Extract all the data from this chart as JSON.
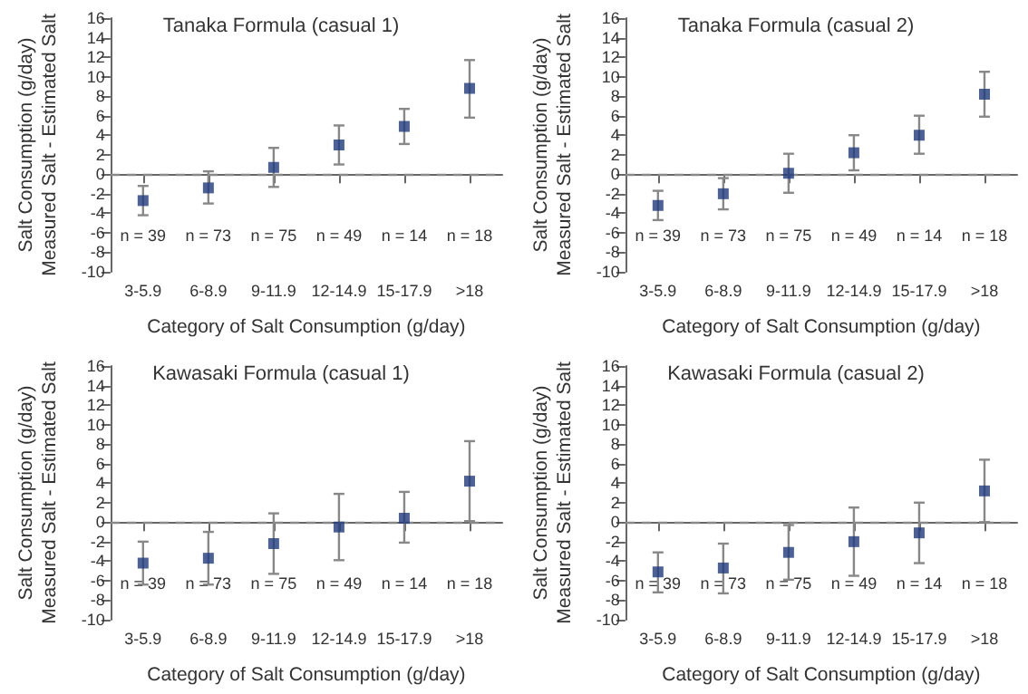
{
  "chart_data": [
    {
      "type": "scatter",
      "title": "Tanaka Formula (casual 1)",
      "xlabel": "Category of Salt Consumption (g/day)",
      "ylabel": "Salt Consumption (g/day)\nMeasured Salt - Estimated Salt",
      "categories": [
        "3-5.9",
        "6-8.9",
        "9-11.9",
        "12-14.9",
        "15-17.9",
        ">18"
      ],
      "series": [
        {
          "color": "#1f3a7a",
          "values": [
            -2.7,
            -1.4,
            0.7,
            3,
            4.9,
            8.8
          ],
          "errors": [
            [
              -4.2,
              -1.2
            ],
            [
              -3,
              0.3
            ],
            [
              -1.3,
              2.7
            ],
            [
              1,
              5
            ],
            [
              3.1,
              6.7
            ],
            [
              5.8,
              11.7
            ]
          ]
        }
      ],
      "marker": "square",
      "ylim": [
        -10,
        16
      ],
      "yticks": [
        -10,
        -8,
        -6,
        -4,
        -2,
        0,
        2,
        4,
        6,
        8,
        10,
        12,
        14,
        16
      ],
      "ref_lines": [
        {
          "axis": "y",
          "value": 0,
          "color": "#888888",
          "line_style": "dashed"
        }
      ],
      "annotations": [
        "n = 39",
        "n = 73",
        "n = 75",
        "n = 49",
        "n = 14",
        "n = 18"
      ]
    },
    {
      "type": "scatter",
      "title": "Tanaka Formula (casual 2)",
      "xlabel": "Category of Salt Consumption (g/day)",
      "ylabel": "Salt Consumption (g/day)\nMeasured Salt - Estimated Salt",
      "categories": [
        "3-5.9",
        "6-8.9",
        "9-11.9",
        "12-14.9",
        "15-17.9",
        ">18"
      ],
      "series": [
        {
          "color": "#1f3a7a",
          "values": [
            -3.2,
            -2,
            0.1,
            2.2,
            4,
            8.2
          ],
          "errors": [
            [
              -4.7,
              -1.7
            ],
            [
              -3.6,
              -0.4
            ],
            [
              -1.9,
              2.1
            ],
            [
              0.4,
              4
            ],
            [
              2.1,
              6
            ],
            [
              5.9,
              10.5
            ]
          ]
        }
      ],
      "marker": "square",
      "ylim": [
        -10,
        16
      ],
      "yticks": [
        -10,
        -8,
        -6,
        -4,
        -2,
        0,
        2,
        4,
        6,
        8,
        10,
        12,
        14,
        16
      ],
      "ref_lines": [
        {
          "axis": "y",
          "value": 0,
          "color": "#888888",
          "line_style": "dashed"
        }
      ],
      "annotations": [
        "n = 39",
        "n = 73",
        "n = 75",
        "n = 49",
        "n = 14",
        "n = 18"
      ]
    },
    {
      "type": "scatter",
      "title": "Kawasaki Formula (casual 1)",
      "xlabel": "Category of Salt Consumption (g/day)",
      "ylabel": "Salt Consumption (g/day)\nMeasured Salt - Estimated Salt",
      "categories": [
        "3-5.9",
        "6-8.9",
        "9-11.9",
        "12-14.9",
        "15-17.9",
        ">18"
      ],
      "series": [
        {
          "color": "#1f3a7a",
          "values": [
            -4.2,
            -3.7,
            -2.2,
            -0.5,
            0.4,
            4.2
          ],
          "errors": [
            [
              -6.4,
              -2
            ],
            [
              -6.4,
              -1
            ],
            [
              -5.3,
              0.9
            ],
            [
              -3.9,
              2.9
            ],
            [
              -2.1,
              3.1
            ],
            [
              0.1,
              8.3
            ]
          ]
        }
      ],
      "marker": "square",
      "ylim": [
        -10,
        16
      ],
      "yticks": [
        -10,
        -8,
        -6,
        -4,
        -2,
        0,
        2,
        4,
        6,
        8,
        10,
        12,
        14,
        16
      ],
      "ref_lines": [
        {
          "axis": "y",
          "value": 0,
          "color": "#888888",
          "line_style": "dashed"
        }
      ],
      "annotations": [
        "n = 39",
        "n = 73",
        "n = 75",
        "n = 49",
        "n = 14",
        "n = 18"
      ]
    },
    {
      "type": "scatter",
      "title": "Kawasaki Formula (casual 2)",
      "xlabel": "Category of Salt Consumption (g/day)",
      "ylabel": "Salt Consumption (g/day)\nMeasured Salt - Estimated Salt",
      "categories": [
        "3-5.9",
        "6-8.9",
        "9-11.9",
        "12-14.9",
        "15-17.9",
        ">18"
      ],
      "series": [
        {
          "color": "#1f3a7a",
          "values": [
            -5.1,
            -4.7,
            -3.1,
            -2,
            -1.1,
            3.2
          ],
          "errors": [
            [
              -7.2,
              -3.1
            ],
            [
              -7.3,
              -2.2
            ],
            [
              -5.9,
              -0.3
            ],
            [
              -5.5,
              1.5
            ],
            [
              -4.2,
              2
            ],
            [
              0,
              6.4
            ]
          ]
        }
      ],
      "marker": "square",
      "ylim": [
        -10,
        16
      ],
      "yticks": [
        -10,
        -8,
        -6,
        -4,
        -2,
        0,
        2,
        4,
        6,
        8,
        10,
        12,
        14,
        16
      ],
      "ref_lines": [
        {
          "axis": "y",
          "value": 0,
          "color": "#888888",
          "line_style": "dashed"
        }
      ],
      "annotations": [
        "n = 39",
        "n = 73",
        "n = 75",
        "n = 49",
        "n = 14",
        "n = 18"
      ]
    }
  ]
}
